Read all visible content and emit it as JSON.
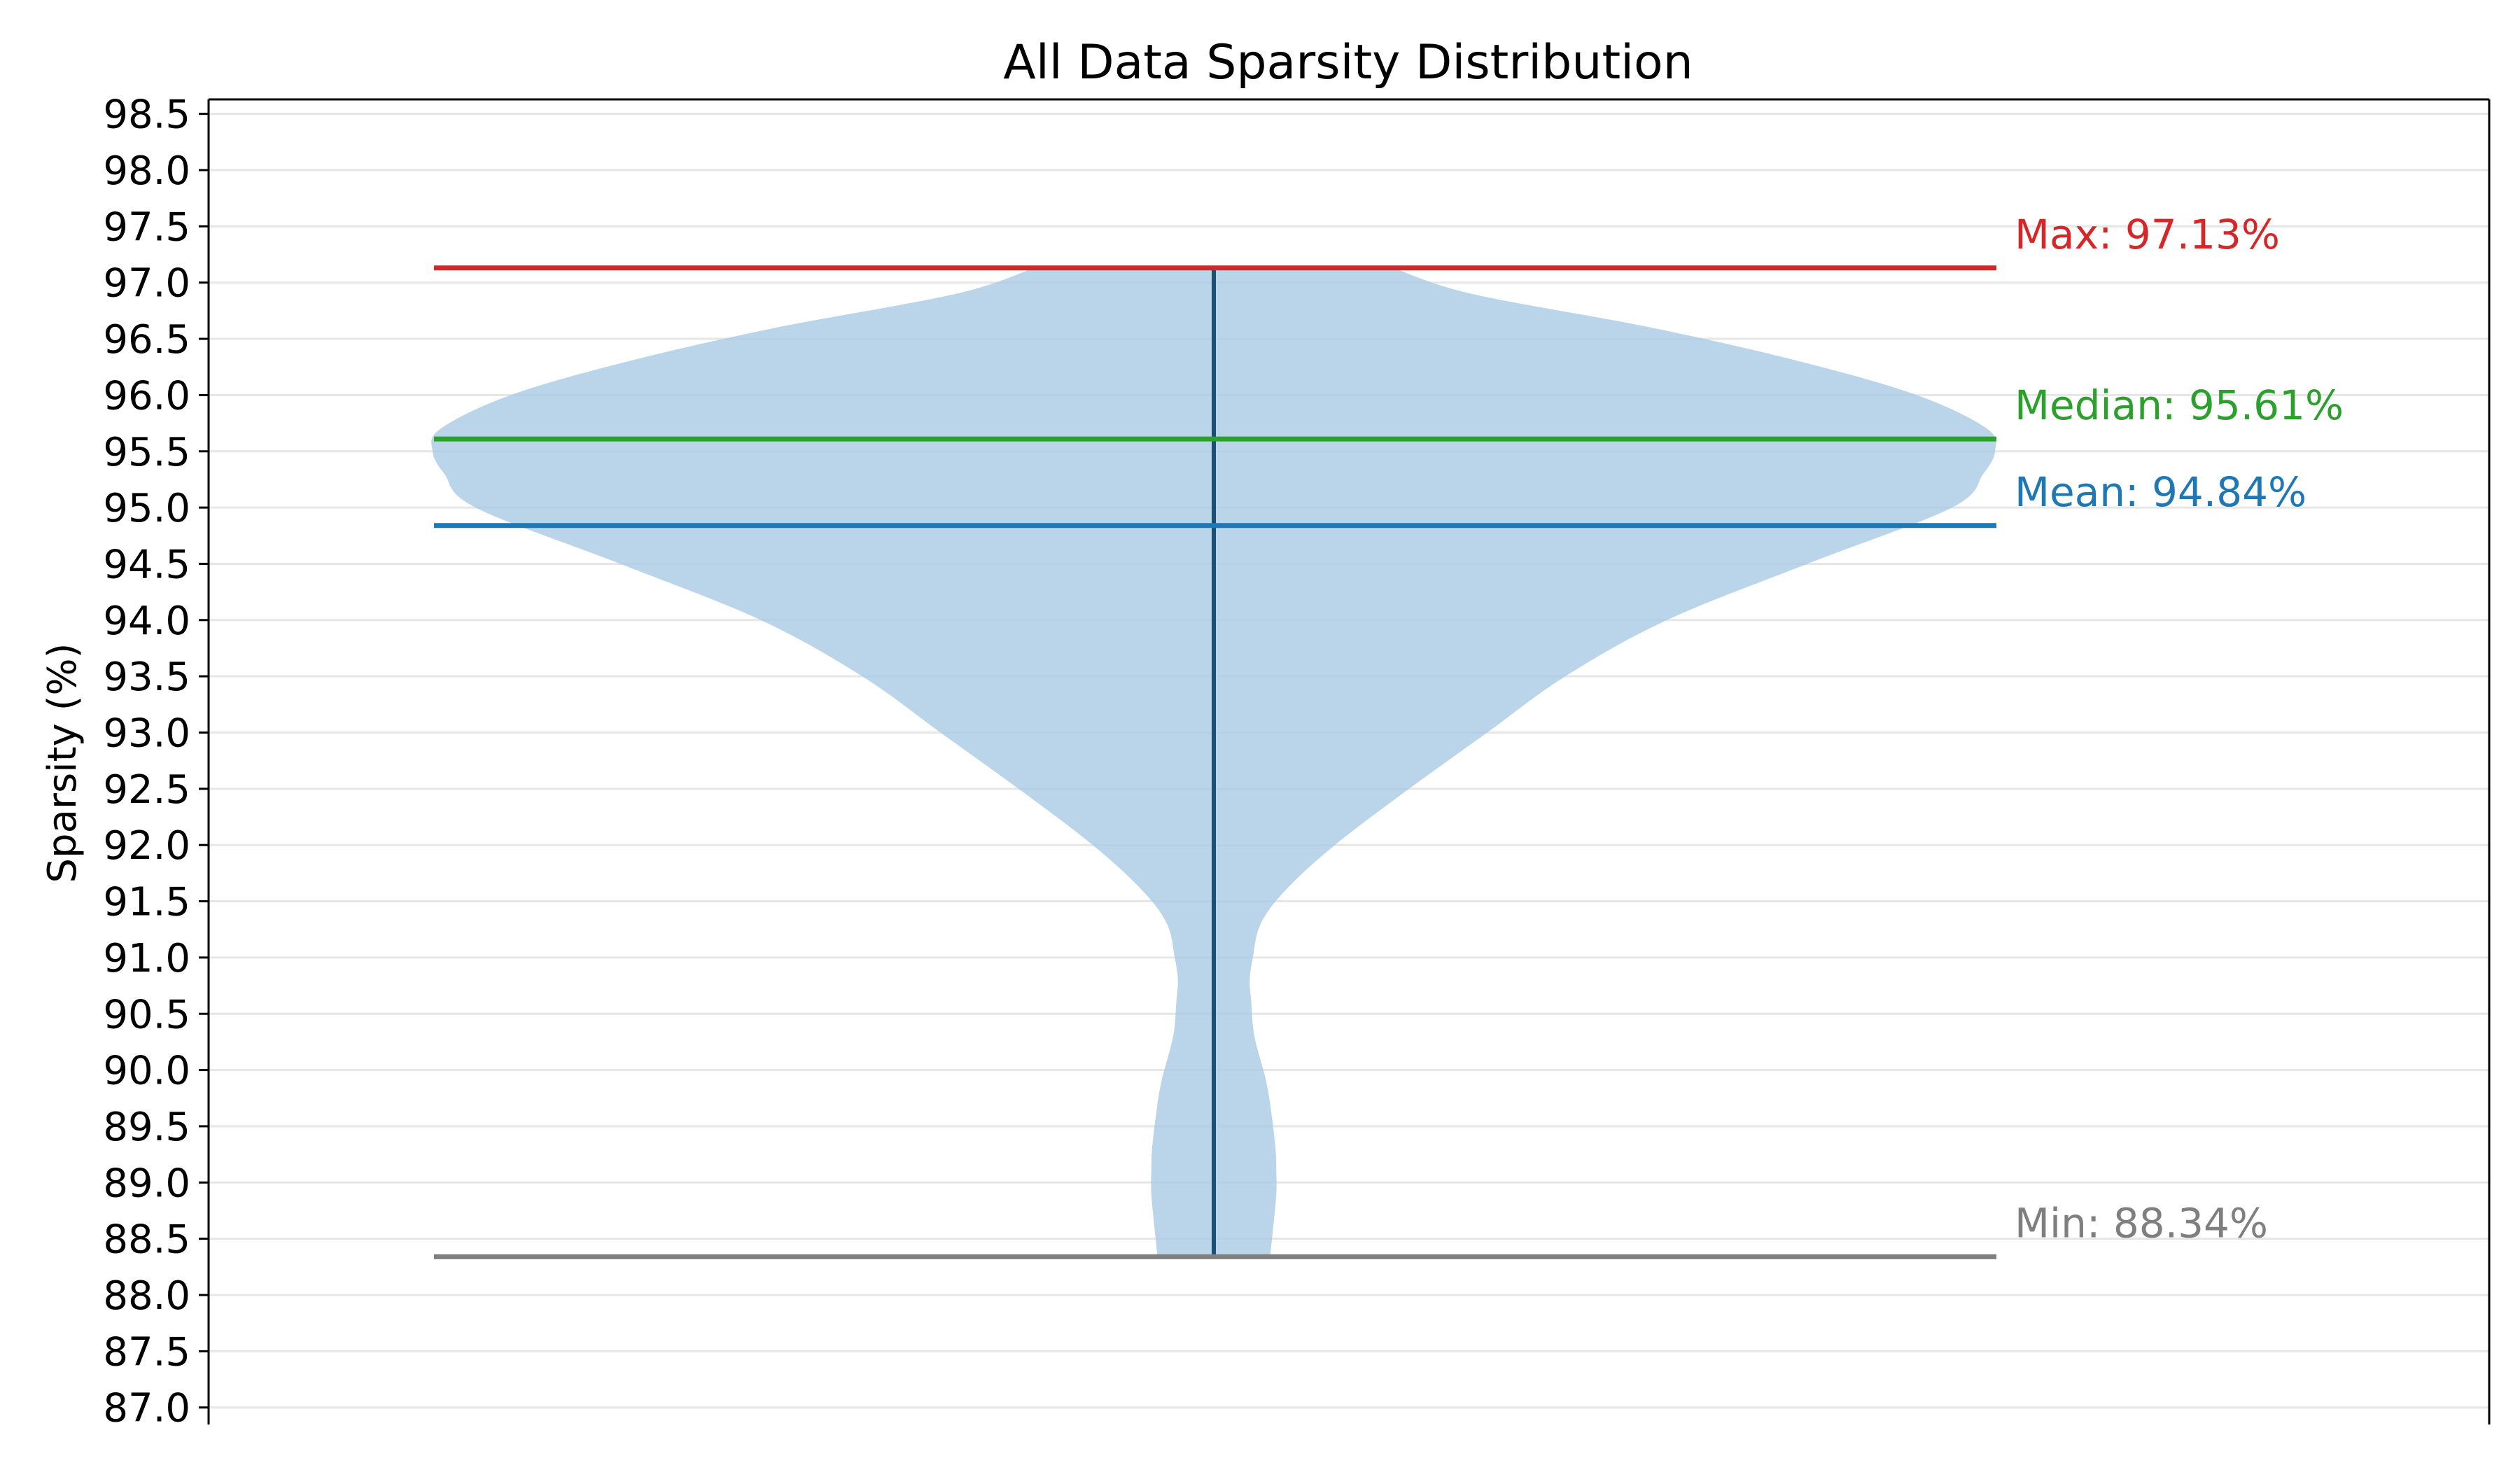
{
  "chart_data": {
    "type": "violin",
    "title": "All Data Sparsity Distribution",
    "xlabel": "",
    "ylabel": "Sparsity (%)",
    "ylim": [
      86.9,
      98.65
    ],
    "yticks": [
      "87.0",
      "87.5",
      "88.0",
      "88.5",
      "89.0",
      "89.5",
      "90.0",
      "90.5",
      "91.0",
      "91.5",
      "92.0",
      "92.5",
      "93.0",
      "93.5",
      "94.0",
      "94.5",
      "95.0",
      "95.5",
      "96.0",
      "96.5",
      "97.0",
      "97.5",
      "98.0",
      "98.5"
    ],
    "grid": true,
    "colors": {
      "violin_fill": "#a9cbe4",
      "center_line": "#1a4e73",
      "max": "#d62728",
      "median": "#2ca02c",
      "mean": "#1f77b4",
      "min": "#7f7f7f",
      "grid": "#e6e6e6",
      "axis": "#000000"
    },
    "stats": {
      "max": 97.13,
      "median": 95.61,
      "mean": 94.84,
      "min": 88.34
    },
    "stat_labels": {
      "max": "Max: 97.13%",
      "median": "Median: 95.61%",
      "mean": "Mean: 94.84%",
      "min": "Min: 88.34%"
    },
    "density": {
      "note_units": "relative half-width (1.0 = widest)",
      "points": [
        [
          88.34,
          0.072
        ],
        [
          88.6,
          0.076
        ],
        [
          88.9,
          0.08
        ],
        [
          89.1,
          0.08
        ],
        [
          89.3,
          0.079
        ],
        [
          89.6,
          0.074
        ],
        [
          89.9,
          0.067
        ],
        [
          90.3,
          0.052
        ],
        [
          90.6,
          0.048
        ],
        [
          90.8,
          0.046
        ],
        [
          91.0,
          0.05
        ],
        [
          91.3,
          0.06
        ],
        [
          91.6,
          0.092
        ],
        [
          92.0,
          0.155
        ],
        [
          92.5,
          0.25
        ],
        [
          93.0,
          0.35
        ],
        [
          93.5,
          0.45
        ],
        [
          94.0,
          0.58
        ],
        [
          94.5,
          0.76
        ],
        [
          95.0,
          0.945
        ],
        [
          95.3,
          0.985
        ],
        [
          95.5,
          1.0
        ],
        [
          95.7,
          0.99
        ],
        [
          96.0,
          0.9
        ],
        [
          96.3,
          0.75
        ],
        [
          96.6,
          0.56
        ],
        [
          96.9,
          0.33
        ],
        [
          97.13,
          0.23
        ]
      ]
    }
  }
}
